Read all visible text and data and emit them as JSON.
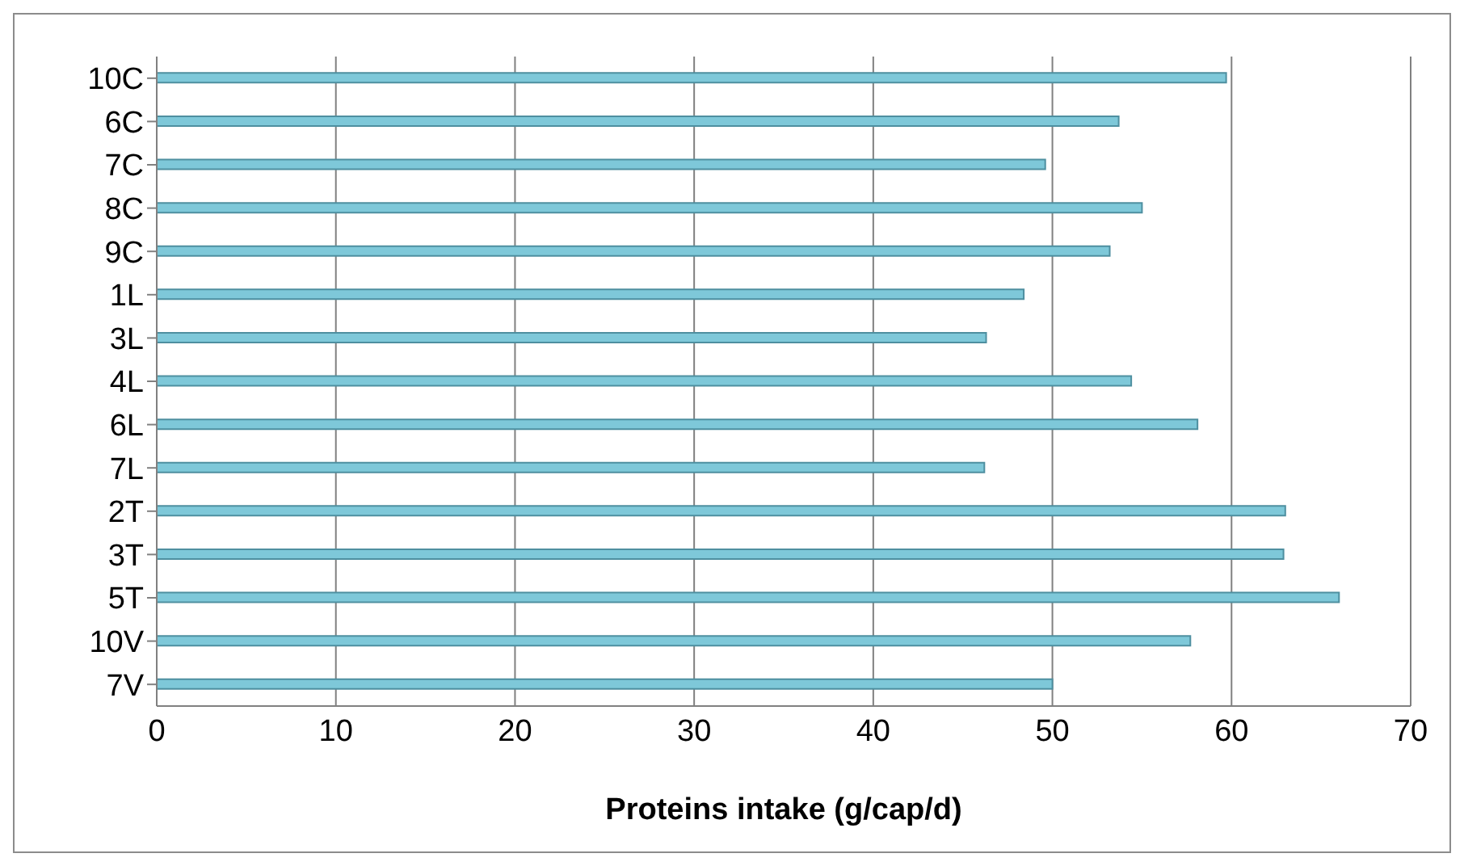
{
  "chart_data": {
    "type": "bar",
    "orientation": "horizontal",
    "xlabel": "Proteins intake (g/cap/d)",
    "categories": [
      "10C",
      "6C",
      "7C",
      "8C",
      "9C",
      "1L",
      "3L",
      "4L",
      "6L",
      "7L",
      "2T",
      "3T",
      "5T",
      "10V",
      "7V"
    ],
    "values": [
      59.7,
      53.7,
      49.6,
      55.0,
      53.2,
      48.4,
      46.3,
      54.4,
      58.1,
      46.2,
      63.0,
      62.9,
      66.0,
      57.7,
      50.0
    ],
    "color": "#7ec8d9",
    "xlim": [
      0,
      70
    ],
    "xticks": [
      0,
      10,
      20,
      30,
      40,
      50,
      60,
      70
    ],
    "grid": "x"
  }
}
